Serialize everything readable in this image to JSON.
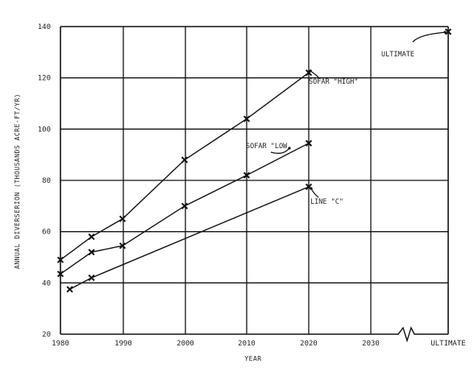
{
  "chart_data": {
    "type": "line",
    "title": "",
    "xlabel": "YEAR",
    "ylabel": "ANNUAL DIVERSERION (THOUSANDS ACRE-FT/YR)",
    "xlim": [
      1980,
      2040
    ],
    "ylim": [
      20,
      140
    ],
    "x_ticks": [
      "1980",
      "1990",
      "2000",
      "2010",
      "2020",
      "2030",
      "ULTIMATE"
    ],
    "y_ticks": [
      "20",
      "40",
      "60",
      "80",
      "100",
      "120",
      "140"
    ],
    "grid": true,
    "legend": "none",
    "axis_break": "between 2030 and ULTIMATE",
    "series": [
      {
        "name": "SOFAR \"HIGH\"",
        "x": [
          1980,
          1985,
          1990,
          2000,
          2010,
          2020
        ],
        "y": [
          49,
          58,
          65,
          88,
          104,
          122
        ]
      },
      {
        "name": "SOFAR \"LOW",
        "x": [
          1980,
          1985,
          1990,
          2000,
          2010,
          2020
        ],
        "y": [
          43.5,
          52,
          54.5,
          70,
          82,
          94.5
        ]
      },
      {
        "name": "LINE \"C\"",
        "x": [
          1981.5,
          1985,
          2020
        ],
        "y": [
          37.5,
          42,
          77.5
        ]
      },
      {
        "name": "ULTIMATE",
        "x": [
          "ULTIMATE"
        ],
        "y": [
          138
        ]
      }
    ]
  }
}
